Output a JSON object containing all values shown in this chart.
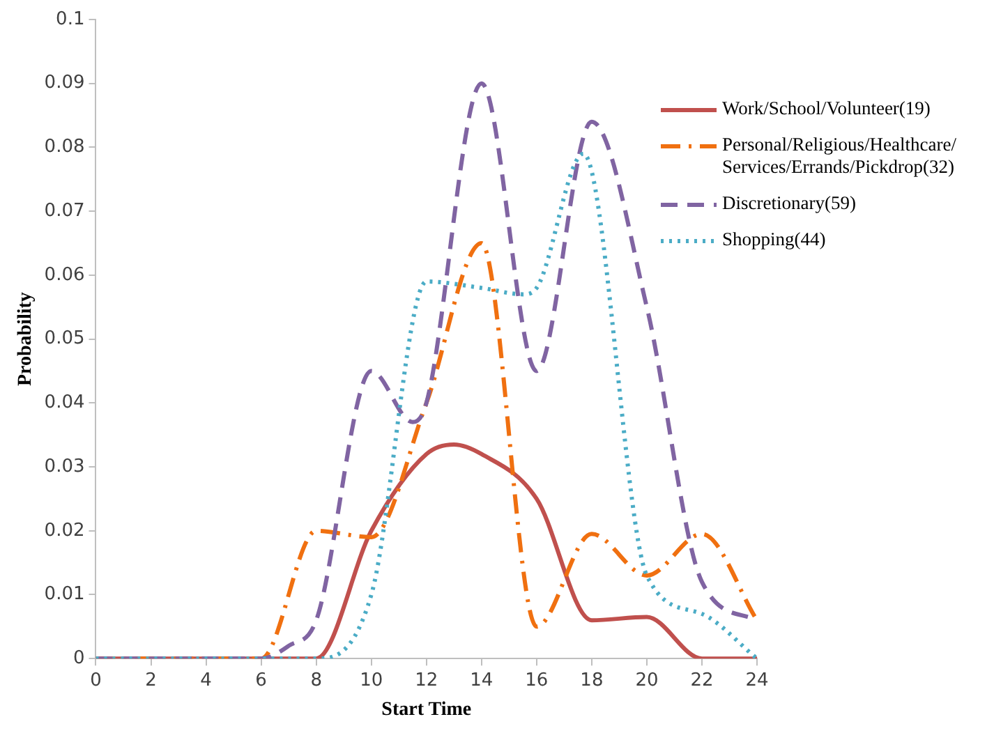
{
  "chart_data": {
    "type": "line",
    "xlabel": "Start Time",
    "ylabel": "Probability",
    "xlim": [
      0,
      24
    ],
    "xticks": [
      0,
      2,
      4,
      6,
      8,
      10,
      12,
      14,
      16,
      18,
      20,
      22,
      24
    ],
    "ylim": [
      0,
      0.1
    ],
    "yticks": [
      0,
      0.01,
      0.02,
      0.03,
      0.04,
      0.05,
      0.06,
      0.07,
      0.08,
      0.09,
      0.1
    ],
    "grid": false,
    "legend": "right",
    "marker": "none",
    "series": [
      {
        "name": "Work/School/Volunteer(19)",
        "color": "#c0504d",
        "line_style": "solid",
        "x": [
          0,
          2,
          4,
          6,
          8,
          10,
          12,
          13,
          14,
          16,
          18,
          20,
          22,
          24
        ],
        "values": [
          0,
          0,
          0,
          0,
          0,
          0.02,
          0.032,
          0.0335,
          0.032,
          0.025,
          0.006,
          0.0065,
          0,
          0
        ]
      },
      {
        "name": "Personal/Religious/Healthcare/Services/Errands/Pickdrop(32)",
        "color": "#f07010",
        "line_style": "dashdot",
        "x": [
          0,
          2,
          4,
          6,
          8,
          10,
          12,
          14,
          16,
          18,
          20,
          22,
          24
        ],
        "values": [
          0,
          0,
          0,
          0,
          0.02,
          0.019,
          0.04,
          0.065,
          0.005,
          0.0195,
          0.013,
          0.0195,
          0.006
        ]
      },
      {
        "name": "Discretionary(59)",
        "color": "#8064a2",
        "line_style": "dashed",
        "x": [
          0,
          2,
          4,
          6,
          7,
          8,
          10,
          11.5,
          12,
          14,
          16,
          18,
          20,
          22,
          24
        ],
        "values": [
          0,
          0,
          0,
          0,
          0.002,
          0.006,
          0.045,
          0.037,
          0.04,
          0.09,
          0.045,
          0.084,
          0.055,
          0.012,
          0.006
        ]
      },
      {
        "name": "Shopping(44)",
        "color": "#4bacc6",
        "line_style": "dotted",
        "x": [
          0,
          2,
          4,
          6,
          8,
          10,
          12,
          14,
          15.5,
          16,
          17.7,
          20,
          22,
          24
        ],
        "values": [
          0,
          0,
          0,
          0,
          0,
          0.01,
          0.059,
          0.058,
          0.057,
          0.058,
          0.079,
          0.013,
          0.007,
          0
        ]
      }
    ]
  }
}
